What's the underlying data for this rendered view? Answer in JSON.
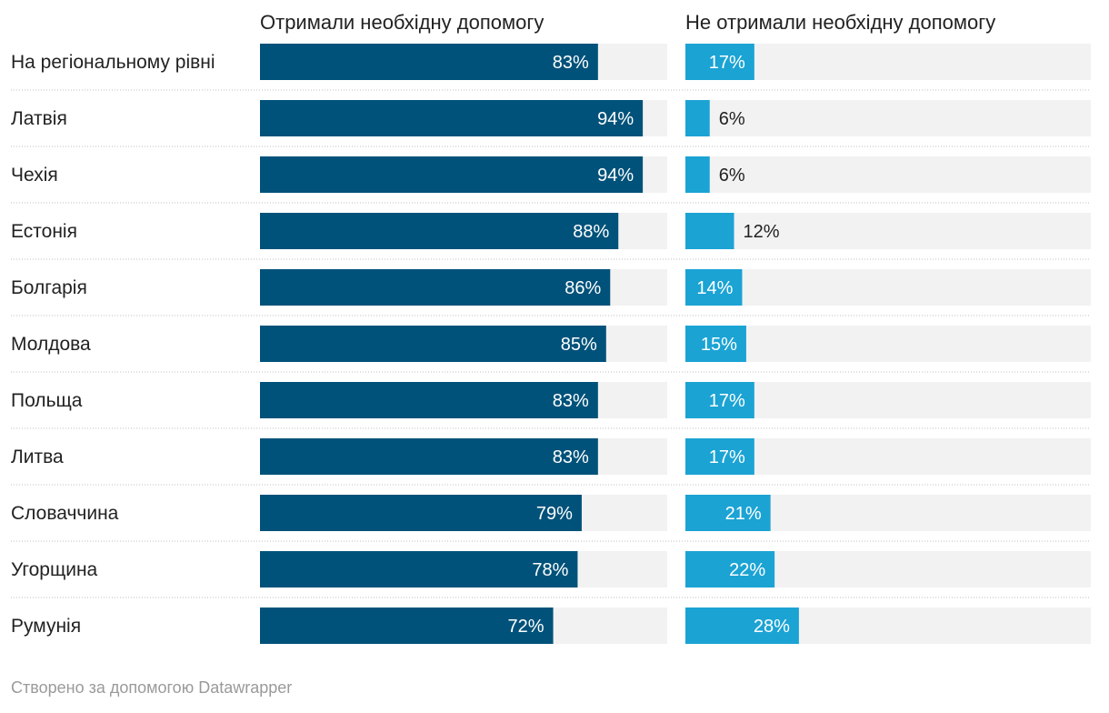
{
  "chart_data": {
    "type": "bar",
    "orientation": "horizontal",
    "layout": "split-bars",
    "value_suffix": "%",
    "xlim": [
      0,
      100
    ],
    "categories": [
      "На регіональному рівні",
      "Латвія",
      "Чехія",
      "Естонія",
      "Болгарія",
      "Молдова",
      "Польща",
      "Литва",
      "Словаччина",
      "Угорщина",
      "Румунія"
    ],
    "series": [
      {
        "name": "Отримали необхідну допомогу",
        "color": "#00527a",
        "values": [
          83,
          94,
          94,
          88,
          86,
          85,
          83,
          83,
          79,
          78,
          72
        ]
      },
      {
        "name": "Не отримали необхідну допомогу",
        "color": "#1ba3d4",
        "values": [
          17,
          6,
          6,
          12,
          14,
          15,
          17,
          17,
          21,
          22,
          28
        ]
      }
    ],
    "track_color": "#f2f2f2",
    "separator": "dotted",
    "grid": false,
    "legend": "none"
  },
  "footer": {
    "note": "Створено за допомогою Datawrapper"
  }
}
